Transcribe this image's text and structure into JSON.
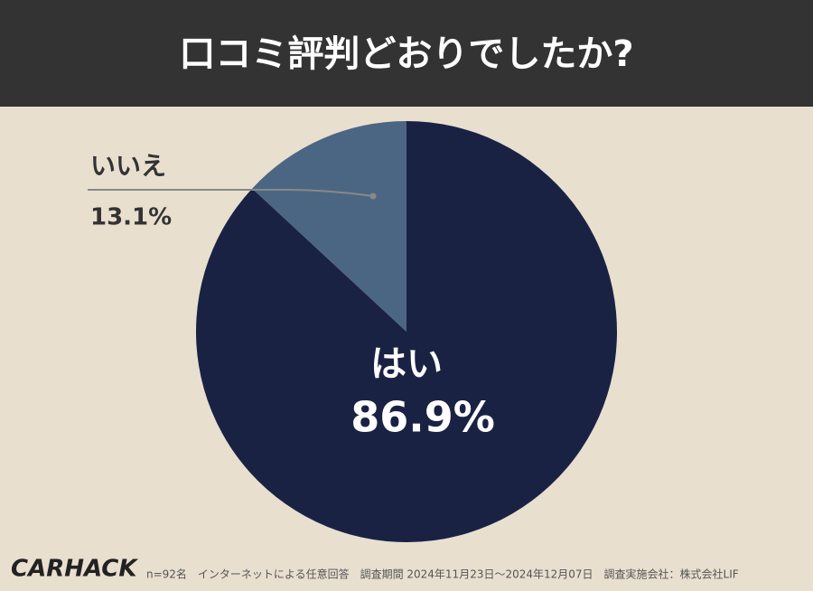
{
  "chart_data": {
    "type": "pie",
    "title": "口コミ評判どおりでしたか?",
    "categories": [
      "はい",
      "いいえ"
    ],
    "values": [
      86.9,
      13.1
    ],
    "value_labels": [
      "86.9%",
      "13.1%"
    ],
    "colors": [
      "#1a2244",
      "#4b6683"
    ]
  },
  "footer": {
    "logo": "CARHACK",
    "note": "n=92名　インターネットによる任意回答　調査期間 2024年11月23日〜2024年12月07日　調査実施会社：株式会社LIF"
  }
}
